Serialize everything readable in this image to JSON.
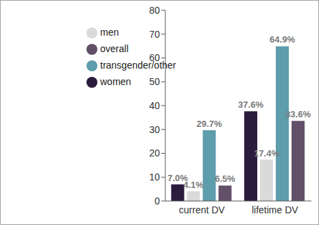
{
  "chart_data": {
    "type": "bar",
    "categories": [
      "current DV",
      "lifetime DV"
    ],
    "series": [
      {
        "name": "women",
        "color": "#2c1b3c",
        "values": [
          7.0,
          37.6
        ],
        "value_labels": [
          "7.0%",
          "37.6%"
        ]
      },
      {
        "name": "men",
        "color": "#dadada",
        "values": [
          4.1,
          17.4
        ],
        "value_labels": [
          "4.1%",
          "17.4%"
        ]
      },
      {
        "name": "transgender/other",
        "color": "#5e9dac",
        "values": [
          29.7,
          64.9
        ],
        "value_labels": [
          "29.7%",
          "64.9%"
        ]
      },
      {
        "name": "overall",
        "color": "#625068",
        "values": [
          6.5,
          33.6
        ],
        "value_labels": [
          "6.5%",
          "33.6%"
        ]
      }
    ],
    "ylim": [
      0,
      80
    ],
    "yticks": [
      0,
      10,
      20,
      30,
      40,
      50,
      60,
      70,
      80
    ],
    "grid": false,
    "legend": "upper left",
    "data_labels": true
  }
}
